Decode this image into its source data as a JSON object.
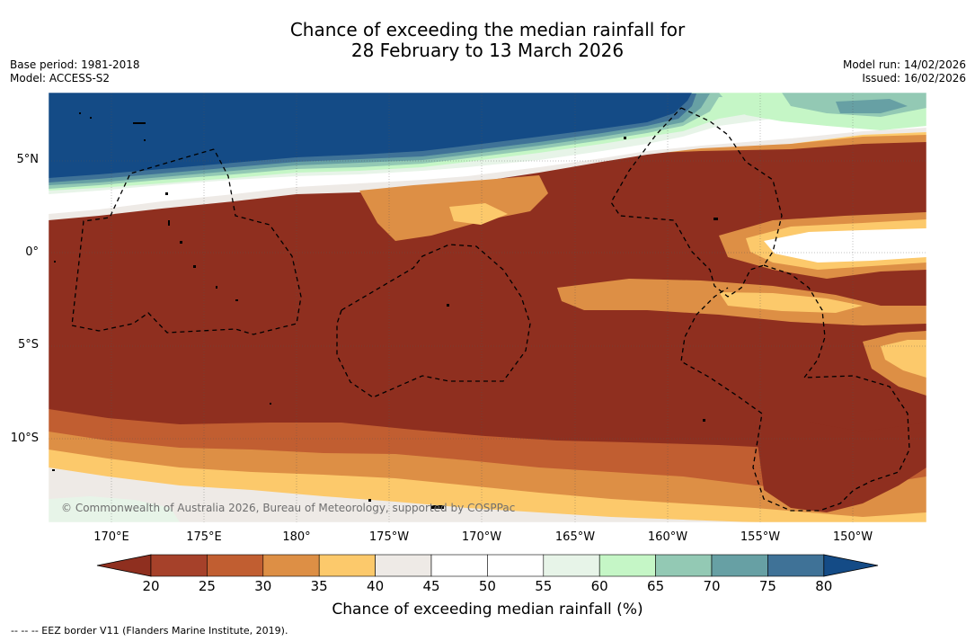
{
  "title_line1": "Chance of exceeding the median rainfall for",
  "title_line2": "28 February to 13 March 2026",
  "base_period": "Base period: 1981-2018",
  "model": "Model: ACCESS-S2",
  "model_run": "Model run: 14/02/2026",
  "issued": "Issued: 16/02/2026",
  "lat_labels": [
    "5°N",
    "0°",
    "5°S",
    "10°S"
  ],
  "lon_labels": [
    "170°E",
    "175°E",
    "180°",
    "175°W",
    "170°W",
    "165°W",
    "160°W",
    "155°W",
    "150°W"
  ],
  "copyright": "© Commonwealth of Australia 2026, Bureau of Meteorology, supported by COSPPac",
  "colorbar": {
    "title": "Chance of exceeding median rainfall (%)",
    "ticks": [
      "20",
      "25",
      "30",
      "35",
      "40",
      "45",
      "50",
      "55",
      "60",
      "65",
      "70",
      "75",
      "80"
    ],
    "colors": [
      "#8f2f1f",
      "#a6412a",
      "#c15e31",
      "#dd8f45",
      "#fcc96b",
      "#eeeae6",
      "#ffffff",
      "#ffffff",
      "#e7f4e8",
      "#c5f6c6",
      "#93c9b4",
      "#67a0a4",
      "#3f7297",
      "#144b86"
    ]
  },
  "footnote": "--  --  -- EEZ border V11 (Flanders Marine Institute, 2019)."
}
